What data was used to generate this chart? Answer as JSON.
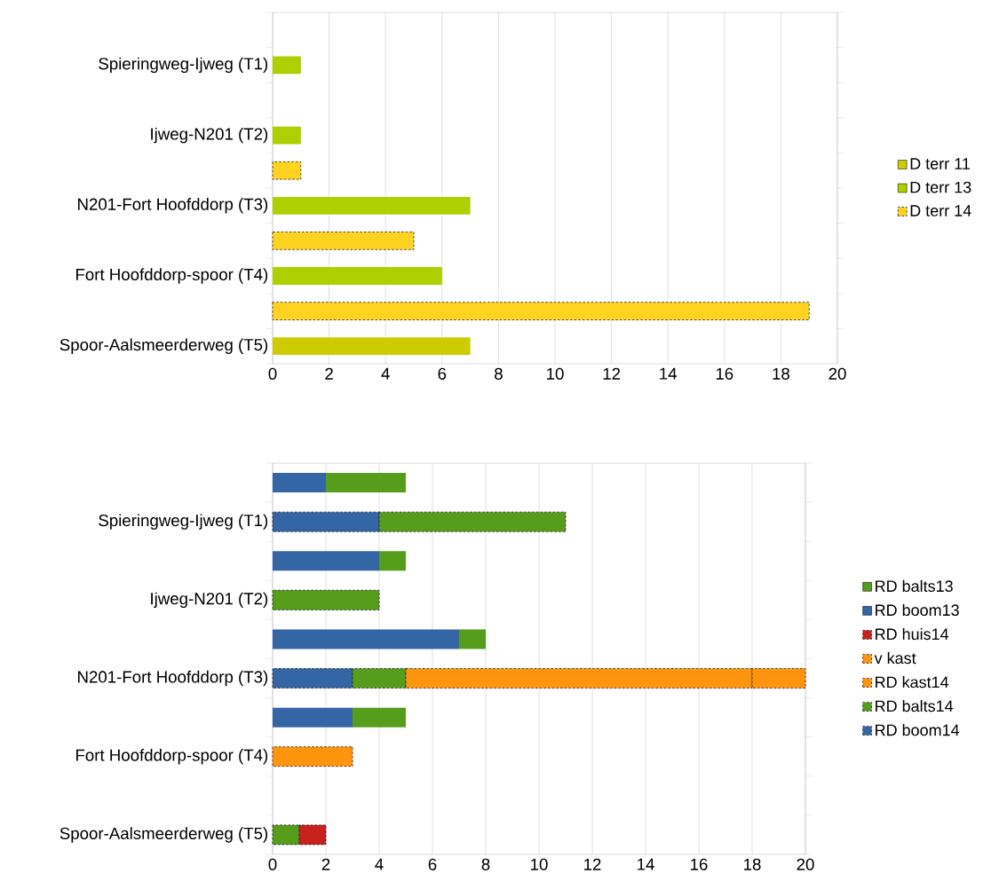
{
  "chart_data": [
    {
      "type": "bar",
      "orientation": "horizontal",
      "stacked": true,
      "categories": [
        null,
        "Spieringweg-Ijweg (T1)",
        null,
        "Ijweg-N201 (T2)",
        null,
        "N201-Fort Hoofddorp (T3)",
        null,
        "Fort Hoofddorp-spoor (T4)",
        null,
        "Spoor-Aalsmeerderweg (T5)"
      ],
      "series": [
        {
          "name": "D terr 14",
          "color": "#ffd320",
          "line_style": "dashed",
          "values": [
            null,
            null,
            null,
            null,
            1,
            null,
            5,
            null,
            19,
            null
          ]
        },
        {
          "name": "D terr 13",
          "color": "#aecf00",
          "values": [
            null,
            1,
            null,
            1,
            null,
            7,
            null,
            6,
            null,
            null
          ]
        },
        {
          "name": "D terr 11",
          "color": "#cccc00",
          "values": [
            null,
            null,
            null,
            null,
            null,
            null,
            null,
            null,
            null,
            7
          ]
        }
      ],
      "xlim": [
        0,
        20
      ],
      "xticks": [
        0,
        2,
        4,
        6,
        8,
        10,
        12,
        14,
        16,
        18,
        20
      ],
      "grid": "x",
      "legend": "right"
    },
    {
      "type": "bar",
      "orientation": "horizontal",
      "stacked": true,
      "categories": [
        null,
        "Spieringweg-Ijweg (T1)",
        null,
        "Ijweg-N201 (T2)",
        null,
        "N201-Fort Hoofddorp (T3)",
        null,
        "Fort Hoofddorp-spoor (T4)",
        null,
        "Spoor-Aalsmeerderweg (T5)"
      ],
      "series": [
        {
          "name": "RD boom14",
          "color": "#3465a4",
          "line_style": "dashed",
          "values": [
            null,
            4,
            null,
            null,
            null,
            3,
            null,
            null,
            null,
            null
          ]
        },
        {
          "name": "RD balts14",
          "color": "#579d1c",
          "line_style": "dashed",
          "values": [
            null,
            7,
            null,
            4,
            null,
            2,
            null,
            null,
            null,
            1
          ]
        },
        {
          "name": "RD kast14",
          "color": "#ff950e",
          "line_style": "dashed",
          "values": [
            null,
            null,
            null,
            null,
            null,
            13,
            null,
            3,
            null,
            null
          ]
        },
        {
          "name": "v kast",
          "color": "#ff950e",
          "line_style": "dashed",
          "values": [
            null,
            null,
            null,
            null,
            null,
            2,
            null,
            null,
            null,
            null
          ]
        },
        {
          "name": "RD huis14",
          "color": "#c9211e",
          "line_style": "dashed",
          "values": [
            null,
            null,
            null,
            null,
            null,
            null,
            null,
            null,
            null,
            1
          ]
        },
        {
          "name": "RD boom13",
          "color": "#3465a4",
          "values": [
            2,
            null,
            4,
            null,
            7,
            null,
            3,
            null,
            null,
            null
          ]
        },
        {
          "name": "RD balts13",
          "color": "#579d1c",
          "values": [
            3,
            null,
            1,
            null,
            1,
            null,
            2,
            null,
            null,
            null
          ]
        }
      ],
      "xlim": [
        0,
        20
      ],
      "xticks": [
        0,
        2,
        4,
        6,
        8,
        10,
        12,
        14,
        16,
        18,
        20
      ],
      "grid": "x",
      "legend": "right"
    }
  ]
}
